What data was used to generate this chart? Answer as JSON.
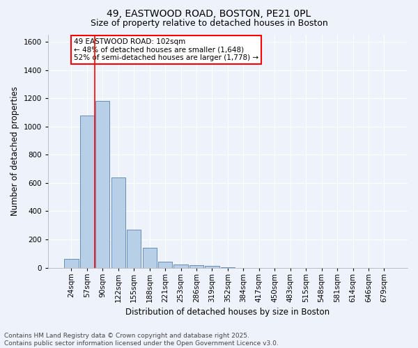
{
  "title_line1": "49, EASTWOOD ROAD, BOSTON, PE21 0PL",
  "title_line2": "Size of property relative to detached houses in Boston",
  "xlabel": "Distribution of detached houses by size in Boston",
  "ylabel": "Number of detached properties",
  "categories": [
    "24sqm",
    "57sqm",
    "90sqm",
    "122sqm",
    "155sqm",
    "188sqm",
    "221sqm",
    "253sqm",
    "286sqm",
    "319sqm",
    "352sqm",
    "384sqm",
    "417sqm",
    "450sqm",
    "483sqm",
    "515sqm",
    "548sqm",
    "581sqm",
    "614sqm",
    "646sqm",
    "679sqm"
  ],
  "values": [
    60,
    1080,
    1180,
    640,
    270,
    140,
    40,
    25,
    20,
    15,
    5,
    0,
    0,
    0,
    0,
    0,
    0,
    0,
    0,
    0,
    0
  ],
  "bar_color": "#b8cfe8",
  "bar_edge_color": "#5580b0",
  "vline_color": "red",
  "vline_x": 1.5,
  "annotation_text": "49 EASTWOOD ROAD: 102sqm\n← 48% of detached houses are smaller (1,648)\n52% of semi-detached houses are larger (1,778) →",
  "annotation_box_color": "white",
  "annotation_box_edge_color": "red",
  "ylim": [
    0,
    1650
  ],
  "yticks": [
    0,
    200,
    400,
    600,
    800,
    1000,
    1200,
    1400,
    1600
  ],
  "background_color": "#eef2fb",
  "grid_color": "white",
  "footer_line1": "Contains HM Land Registry data © Crown copyright and database right 2025.",
  "footer_line2": "Contains public sector information licensed under the Open Government Licence v3.0.",
  "title_fontsize": 10,
  "subtitle_fontsize": 9,
  "axis_label_fontsize": 8.5,
  "tick_fontsize": 7.5,
  "annotation_fontsize": 7.5,
  "footer_fontsize": 6.5
}
